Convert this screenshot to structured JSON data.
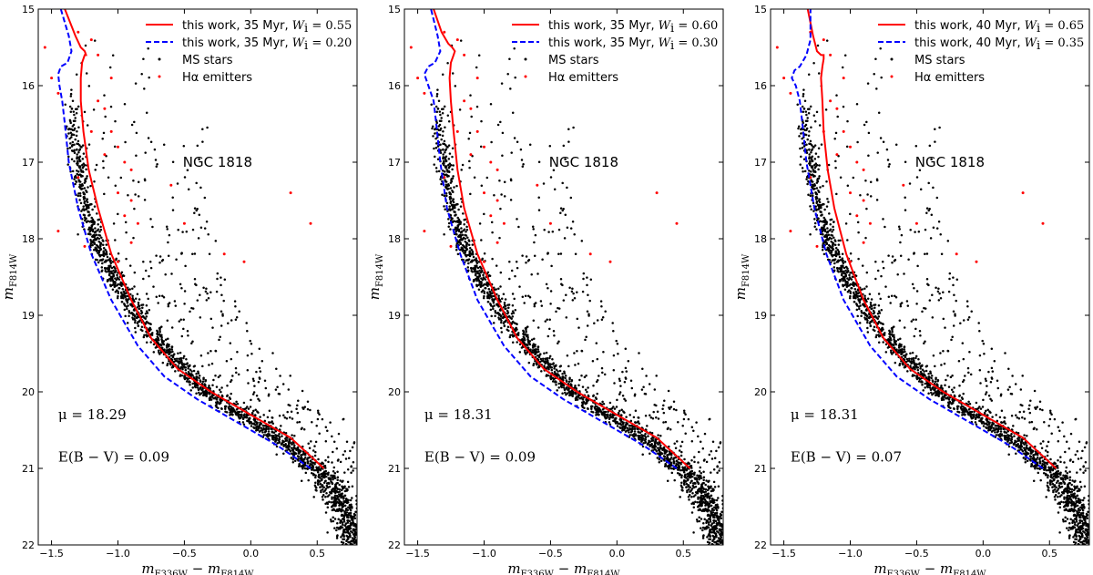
{
  "figure": {
    "cluster": "NGC 1818",
    "xlabel_main": "m",
    "xlabel_sub1": "F336W",
    "xlabel_minus": " − m",
    "xlabel_sub2": "F814W",
    "ylabel_main": "m",
    "ylabel_sub": "F814W"
  },
  "chart_data": [
    {
      "type": "scatter",
      "title": "NGC 1818",
      "xlabel": "m_F336W − m_F814W",
      "ylabel": "m_F814W",
      "xlim": [
        -1.6,
        0.8
      ],
      "ylim": [
        22,
        15
      ],
      "xticks": [
        "−1.5",
        "−1.0",
        "−0.5",
        "0.0",
        "0.5"
      ],
      "xtick_values": [
        -1.5,
        -1.0,
        -0.5,
        0.0,
        0.5
      ],
      "yticks": [
        "15",
        "16",
        "17",
        "18",
        "19",
        "20",
        "21",
        "22"
      ],
      "ytick_values": [
        15,
        16,
        17,
        18,
        19,
        20,
        21,
        22
      ],
      "legend": [
        {
          "label": "this work, 35 Myr,",
          "param": "W",
          "param_sub": "i",
          "param_val": " = 0.55",
          "color": "#ff0000",
          "style": "solid"
        },
        {
          "label": "this work, 35 Myr,",
          "param": "W",
          "param_sub": "i",
          "param_val": " = 0.20",
          "color": "#0000ff",
          "style": "dashed"
        },
        {
          "label": "MS stars",
          "color": "#000000",
          "style": "dot"
        },
        {
          "label": "Hα emitters",
          "color": "#ff0000",
          "style": "dot"
        }
      ],
      "annotations": {
        "mu": "μ = 18.29",
        "ebv": "E(B − V) = 0.09"
      },
      "series": [
        {
          "name": "this work, 35 Myr, Wi=0.55",
          "color": "#ff0000",
          "x": [
            0.55,
            0.3,
            0.0,
            -0.3,
            -0.55,
            -0.75,
            -0.9,
            -1.05,
            -1.15,
            -1.22,
            -1.26,
            -1.28,
            -1.28,
            -1.27,
            -1.25,
            -1.24,
            -1.25,
            -1.28,
            -1.32,
            -1.4
          ],
          "y": [
            21.0,
            20.6,
            20.3,
            20.0,
            19.7,
            19.3,
            18.8,
            18.2,
            17.6,
            17.1,
            16.6,
            16.2,
            15.9,
            15.7,
            15.6,
            15.6,
            15.55,
            15.5,
            15.35,
            15.0
          ]
        },
        {
          "name": "this work, 35 Myr, Wi=0.20",
          "color": "#0000ff",
          "x": [
            0.45,
            0.2,
            -0.1,
            -0.4,
            -0.65,
            -0.85,
            -1.05,
            -1.2,
            -1.3,
            -1.37,
            -1.4,
            -1.42,
            -1.44,
            -1.45,
            -1.43,
            -1.38,
            -1.35,
            -1.37,
            -1.43
          ],
          "y": [
            21.0,
            20.7,
            20.4,
            20.1,
            19.8,
            19.4,
            18.8,
            18.2,
            17.6,
            17.0,
            16.5,
            16.2,
            16.0,
            15.85,
            15.75,
            15.7,
            15.55,
            15.35,
            15.0
          ]
        }
      ]
    },
    {
      "type": "scatter",
      "title": "NGC 1818",
      "xlabel": "m_F336W − m_F814W",
      "ylabel": "m_F814W",
      "xlim": [
        -1.6,
        0.8
      ],
      "ylim": [
        22,
        15
      ],
      "xticks": [
        "−1.5",
        "−1.0",
        "−0.5",
        "0.0",
        "0.5"
      ],
      "xtick_values": [
        -1.5,
        -1.0,
        -0.5,
        0.0,
        0.5
      ],
      "yticks": [
        "15",
        "16",
        "17",
        "18",
        "19",
        "20",
        "21",
        "22"
      ],
      "ytick_values": [
        15,
        16,
        17,
        18,
        19,
        20,
        21,
        22
      ],
      "legend": [
        {
          "label": "this work, 35 Myr,",
          "param": "W",
          "param_sub": "i",
          "param_val": " = 0.60",
          "color": "#ff0000",
          "style": "solid"
        },
        {
          "label": "this work, 35 Myr,",
          "param": "W",
          "param_sub": "i",
          "param_val": " = 0.30",
          "color": "#0000ff",
          "style": "dashed"
        },
        {
          "label": "MS stars",
          "color": "#000000",
          "style": "dot"
        },
        {
          "label": "Hα emitters",
          "color": "#ff0000",
          "style": "dot"
        }
      ],
      "annotations": {
        "mu": "μ = 18.31",
        "ebv": "E(B − V) = 0.09"
      },
      "series": [
        {
          "name": "this work, 35 Myr, Wi=0.60",
          "color": "#ff0000",
          "x": [
            0.55,
            0.3,
            0.0,
            -0.3,
            -0.55,
            -0.75,
            -0.9,
            -1.05,
            -1.15,
            -1.2,
            -1.23,
            -1.25,
            -1.26,
            -1.25,
            -1.23,
            -1.22,
            -1.24,
            -1.27,
            -1.32,
            -1.38
          ],
          "y": [
            21.0,
            20.6,
            20.3,
            20.0,
            19.7,
            19.3,
            18.8,
            18.2,
            17.6,
            17.1,
            16.6,
            16.2,
            15.9,
            15.7,
            15.6,
            15.55,
            15.5,
            15.45,
            15.3,
            15.0
          ]
        },
        {
          "name": "this work, 35 Myr, Wi=0.30",
          "color": "#0000ff",
          "x": [
            0.45,
            0.2,
            -0.1,
            -0.4,
            -0.65,
            -0.85,
            -1.05,
            -1.18,
            -1.28,
            -1.33,
            -1.36,
            -1.38,
            -1.42,
            -1.45,
            -1.42,
            -1.37,
            -1.33,
            -1.35,
            -1.4
          ],
          "y": [
            21.0,
            20.7,
            20.4,
            20.1,
            19.8,
            19.4,
            18.8,
            18.2,
            17.6,
            17.0,
            16.5,
            16.2,
            16.0,
            15.85,
            15.75,
            15.7,
            15.55,
            15.35,
            15.0
          ]
        }
      ]
    },
    {
      "type": "scatter",
      "title": "NGC 1818",
      "xlabel": "m_F336W − m_F814W",
      "ylabel": "m_F814W",
      "xlim": [
        -1.6,
        0.8
      ],
      "ylim": [
        22,
        15
      ],
      "xticks": [
        "−1.5",
        "−1.0",
        "−0.5",
        "0.0",
        "0.5"
      ],
      "xtick_values": [
        -1.5,
        -1.0,
        -0.5,
        0.0,
        0.5
      ],
      "yticks": [
        "15",
        "16",
        "17",
        "18",
        "19",
        "20",
        "21",
        "22"
      ],
      "ytick_values": [
        15,
        16,
        17,
        18,
        19,
        20,
        21,
        22
      ],
      "legend": [
        {
          "label": "this work, 40 Myr,",
          "param": "W",
          "param_sub": "i",
          "param_val": " = 0.65",
          "color": "#ff0000",
          "style": "solid"
        },
        {
          "label": "this work, 40 Myr,",
          "param": "W",
          "param_sub": "i",
          "param_val": " = 0.35",
          "color": "#0000ff",
          "style": "dashed"
        },
        {
          "label": "MS stars",
          "color": "#000000",
          "style": "dot"
        },
        {
          "label": "Hα emitters",
          "color": "#ff0000",
          "style": "dot"
        }
      ],
      "annotations": {
        "mu": "μ = 18.31",
        "ebv": "E(B − V) = 0.07"
      },
      "series": [
        {
          "name": "this work, 40 Myr, Wi=0.65",
          "color": "#ff0000",
          "x": [
            0.55,
            0.3,
            0.0,
            -0.3,
            -0.55,
            -0.75,
            -0.9,
            -1.03,
            -1.12,
            -1.17,
            -1.2,
            -1.21,
            -1.22,
            -1.21,
            -1.2,
            -1.2,
            -1.22,
            -1.25,
            -1.28,
            -1.32
          ],
          "y": [
            21.0,
            20.6,
            20.3,
            20.0,
            19.7,
            19.3,
            18.8,
            18.2,
            17.6,
            17.1,
            16.6,
            16.2,
            15.9,
            15.75,
            15.65,
            15.6,
            15.6,
            15.55,
            15.35,
            15.0
          ]
        },
        {
          "name": "this work, 40 Myr, Wi=0.35",
          "color": "#0000ff",
          "x": [
            0.45,
            0.2,
            -0.1,
            -0.4,
            -0.65,
            -0.85,
            -1.05,
            -1.18,
            -1.27,
            -1.33,
            -1.36,
            -1.38,
            -1.41,
            -1.44,
            -1.42,
            -1.38,
            -1.33,
            -1.3,
            -1.3
          ],
          "y": [
            21.0,
            20.7,
            20.4,
            20.1,
            19.8,
            19.4,
            18.8,
            18.2,
            17.6,
            17.0,
            16.5,
            16.2,
            16.0,
            15.9,
            15.8,
            15.75,
            15.6,
            15.4,
            15.0
          ]
        }
      ]
    }
  ],
  "ms_model": {
    "ridge_x": [
      -1.38,
      -1.35,
      -1.28,
      -1.18,
      -1.0,
      -0.8,
      -0.55,
      -0.3,
      0.0,
      0.3,
      0.5,
      0.65,
      0.75
    ],
    "ridge_y": [
      16.0,
      16.8,
      17.5,
      18.1,
      18.7,
      19.2,
      19.7,
      20.1,
      20.4,
      20.8,
      21.1,
      21.5,
      22.0
    ],
    "n_stars": 2400,
    "color": "#000000"
  },
  "ha_emitters": {
    "color": "#ff0000",
    "points": [
      [
        -1.55,
        15.5
      ],
      [
        -1.5,
        15.9
      ],
      [
        -1.45,
        16.1
      ],
      [
        -1.3,
        15.3
      ],
      [
        -1.2,
        15.4
      ],
      [
        -1.15,
        15.6
      ],
      [
        -1.05,
        15.9
      ],
      [
        -1.15,
        16.2
      ],
      [
        -1.1,
        16.3
      ],
      [
        -1.2,
        16.6
      ],
      [
        -1.05,
        16.6
      ],
      [
        -1.1,
        16.9
      ],
      [
        -1.0,
        16.8
      ],
      [
        -0.95,
        17.0
      ],
      [
        -0.9,
        17.1
      ],
      [
        -1.0,
        17.4
      ],
      [
        -0.9,
        17.5
      ],
      [
        -0.95,
        17.7
      ],
      [
        -0.85,
        17.8
      ],
      [
        -0.9,
        18.05
      ],
      [
        -0.6,
        17.3
      ],
      [
        -0.5,
        17.8
      ],
      [
        -0.2,
        18.2
      ],
      [
        -0.05,
        18.3
      ],
      [
        0.3,
        17.4
      ],
      [
        0.45,
        17.8
      ],
      [
        -1.45,
        17.9
      ],
      [
        -1.25,
        18.1
      ],
      [
        -1.3,
        17.2
      ],
      [
        -1.0,
        18.3
      ]
    ]
  }
}
